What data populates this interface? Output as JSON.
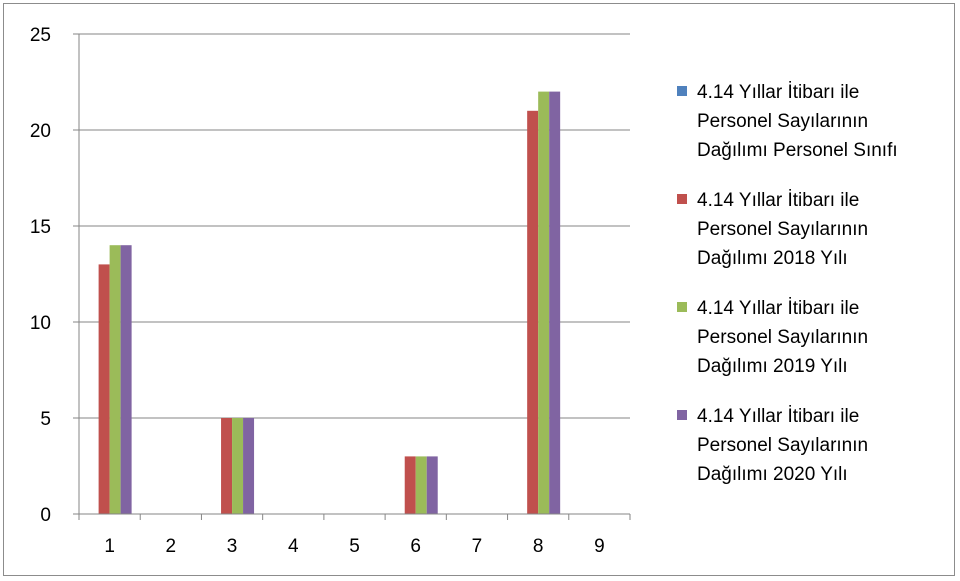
{
  "chart_data": {
    "type": "bar",
    "categories": [
      "1",
      "2",
      "3",
      "4",
      "5",
      "6",
      "7",
      "8",
      "9"
    ],
    "ylim": [
      0,
      25
    ],
    "yticks": [
      "0",
      "5",
      "10",
      "15",
      "20",
      "25"
    ],
    "grid": true,
    "legend_position": "right",
    "series": [
      {
        "name": "4.14  Yıllar İtibarı ile Personel Sayılarının Dağılımı Personel Sınıfı",
        "name_lines": [
          "4.14  Yıllar İtibarı ile",
          "Personel Sayılarının",
          "Dağılımı Personel Sınıfı"
        ],
        "color": "#4F81BD",
        "values": [
          0,
          0,
          0,
          0,
          0,
          0,
          0,
          0,
          0
        ]
      },
      {
        "name": "4.14  Yıllar İtibarı ile Personel Sayılarının Dağılımı 2018 Yılı",
        "name_lines": [
          "4.14  Yıllar İtibarı ile",
          "Personel Sayılarının",
          "Dağılımı 2018 Yılı"
        ],
        "color": "#C0504D",
        "values": [
          13,
          0,
          5,
          0,
          0,
          3,
          0,
          21,
          0
        ]
      },
      {
        "name": "4.14  Yıllar İtibarı ile Personel Sayılarının Dağılımı 2019 Yılı",
        "name_lines": [
          "4.14  Yıllar İtibarı ile",
          "Personel Sayılarının",
          "Dağılımı 2019 Yılı"
        ],
        "color": "#9BBB59",
        "values": [
          14,
          0,
          5,
          0,
          0,
          3,
          0,
          22,
          0
        ]
      },
      {
        "name": "4.14  Yıllar İtibarı ile Personel Sayılarının Dağılımı 2020 Yılı",
        "name_lines": [
          "4.14  Yıllar İtibarı ile",
          "Personel Sayılarının",
          "Dağılımı 2020 Yılı"
        ],
        "color": "#8064A2",
        "values": [
          14,
          0,
          5,
          0,
          0,
          3,
          0,
          22,
          0
        ]
      }
    ]
  }
}
